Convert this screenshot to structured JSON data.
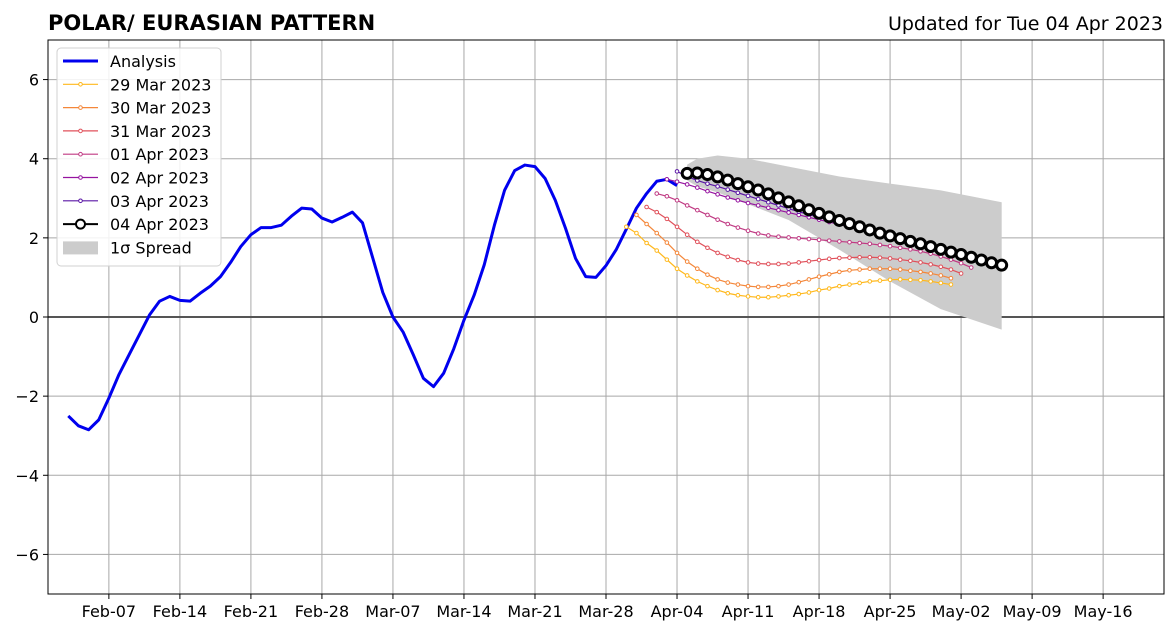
{
  "chart_data": {
    "type": "line",
    "title": "POLAR/ EURASIAN  PATTERN",
    "subtitle": "Updated for Tue 04 Apr 2023",
    "xlabel": "",
    "ylabel": "",
    "x_range": [
      "2023-02-01",
      "2023-05-22"
    ],
    "ylim": [
      -7,
      7
    ],
    "grid": true,
    "legend_position": "top-left",
    "x_ticks": [
      {
        "date": "2023-02-07",
        "label": "Feb-07"
      },
      {
        "date": "2023-02-14",
        "label": "Feb-14"
      },
      {
        "date": "2023-02-21",
        "label": "Feb-21"
      },
      {
        "date": "2023-02-28",
        "label": "Feb-28"
      },
      {
        "date": "2023-03-07",
        "label": "Mar-07"
      },
      {
        "date": "2023-03-14",
        "label": "Mar-14"
      },
      {
        "date": "2023-03-21",
        "label": "Mar-21"
      },
      {
        "date": "2023-03-28",
        "label": "Mar-28"
      },
      {
        "date": "2023-04-04",
        "label": "Apr-04"
      },
      {
        "date": "2023-04-11",
        "label": "Apr-11"
      },
      {
        "date": "2023-04-18",
        "label": "Apr-18"
      },
      {
        "date": "2023-04-25",
        "label": "Apr-25"
      },
      {
        "date": "2023-05-02",
        "label": "May-02"
      },
      {
        "date": "2023-05-09",
        "label": "May-09"
      },
      {
        "date": "2023-05-16",
        "label": "May-16"
      }
    ],
    "y_ticks": [
      {
        "value": 6,
        "label": "6"
      },
      {
        "value": 4,
        "label": "4"
      },
      {
        "value": 2,
        "label": "2"
      },
      {
        "value": 0,
        "label": "0"
      },
      {
        "value": -2,
        "label": "−2"
      },
      {
        "value": -4,
        "label": "−4"
      },
      {
        "value": -6,
        "label": "−6"
      }
    ],
    "analysis": {
      "name": "Analysis",
      "color": "#0000ee",
      "start_date": "2023-02-03",
      "values": [
        -2.5,
        -2.75,
        -2.85,
        -2.6,
        -2.05,
        -1.45,
        -0.95,
        -0.45,
        0.05,
        0.4,
        0.52,
        0.42,
        0.4,
        0.6,
        0.78,
        1.02,
        1.38,
        1.78,
        2.08,
        2.26,
        2.26,
        2.32,
        2.55,
        2.75,
        2.73,
        2.5,
        2.4,
        2.52,
        2.65,
        2.38,
        1.5,
        0.62,
        0.0,
        -0.38,
        -0.95,
        -1.55,
        -1.76,
        -1.42,
        -0.8,
        -0.08,
        0.55,
        1.32,
        2.32,
        3.2,
        3.7,
        3.84,
        3.8,
        3.5,
        2.95,
        2.25,
        1.48,
        1.02,
        1.0,
        1.3,
        1.7,
        2.22,
        2.75,
        3.12,
        3.43,
        3.48,
        3.32
      ]
    },
    "series": [
      {
        "name": "29 Mar 2023",
        "color": "#ffb81c",
        "start_date": "2023-03-30",
        "values": [
          2.28,
          2.12,
          1.87,
          1.68,
          1.45,
          1.22,
          1.05,
          0.9,
          0.78,
          0.68,
          0.6,
          0.55,
          0.52,
          0.5,
          0.5,
          0.52,
          0.55,
          0.58,
          0.62,
          0.68,
          0.72,
          0.78,
          0.82,
          0.86,
          0.9,
          0.92,
          0.94,
          0.95,
          0.94,
          0.93,
          0.9,
          0.86,
          0.82
        ]
      },
      {
        "name": "30 Mar 2023",
        "color": "#f4873a",
        "start_date": "2023-03-31",
        "values": [
          2.58,
          2.35,
          2.12,
          1.88,
          1.62,
          1.4,
          1.22,
          1.07,
          0.95,
          0.87,
          0.82,
          0.78,
          0.76,
          0.76,
          0.78,
          0.82,
          0.88,
          0.95,
          1.02,
          1.08,
          1.14,
          1.18,
          1.2,
          1.22,
          1.22,
          1.22,
          1.2,
          1.17,
          1.14,
          1.1,
          1.05,
          0.98
        ]
      },
      {
        "name": "31 Mar 2023",
        "color": "#e0515b",
        "start_date": "2023-04-01",
        "values": [
          2.78,
          2.65,
          2.48,
          2.28,
          2.08,
          1.9,
          1.75,
          1.62,
          1.52,
          1.44,
          1.38,
          1.35,
          1.34,
          1.34,
          1.35,
          1.38,
          1.41,
          1.44,
          1.47,
          1.49,
          1.5,
          1.51,
          1.51,
          1.5,
          1.48,
          1.45,
          1.42,
          1.38,
          1.33,
          1.27,
          1.2,
          1.1
        ]
      },
      {
        "name": "01 Apr 2023",
        "color": "#c03a83",
        "start_date": "2023-04-02",
        "values": [
          3.12,
          3.05,
          2.95,
          2.82,
          2.7,
          2.58,
          2.46,
          2.35,
          2.26,
          2.18,
          2.11,
          2.06,
          2.03,
          2.01,
          1.99,
          1.97,
          1.95,
          1.93,
          1.91,
          1.89,
          1.87,
          1.85,
          1.82,
          1.79,
          1.75,
          1.71,
          1.66,
          1.6,
          1.53,
          1.45,
          1.36,
          1.25
        ]
      },
      {
        "name": "02 Apr 2023",
        "color": "#9614a0",
        "start_date": "2023-04-03",
        "values": [
          3.48,
          3.42,
          3.35,
          3.27,
          3.18,
          3.1,
          3.02,
          2.95,
          2.88,
          2.82,
          2.76,
          2.7,
          2.64,
          2.58,
          2.52,
          2.46,
          2.4,
          2.34,
          2.28,
          2.22,
          2.16,
          2.1,
          2.04,
          1.98,
          1.92,
          1.85,
          1.78,
          1.71,
          1.63,
          1.55,
          1.46,
          1.37
        ]
      },
      {
        "name": "03 Apr 2023",
        "color": "#5a16a5",
        "start_date": "2023-04-04",
        "values": [
          3.68,
          3.55,
          3.45,
          3.37,
          3.3,
          3.22,
          3.14,
          3.06,
          2.98,
          2.9,
          2.82,
          2.74,
          2.66,
          2.59,
          2.52,
          2.45,
          2.38,
          2.31,
          2.24,
          2.17,
          2.1,
          2.03,
          1.96,
          1.89,
          1.82,
          1.75,
          1.68,
          1.6,
          1.52,
          1.44,
          1.36,
          1.3
        ]
      },
      {
        "name": "04 Apr 2023",
        "color": "#000000",
        "start_date": "2023-04-05",
        "values": [
          3.63,
          3.64,
          3.6,
          3.54,
          3.46,
          3.37,
          3.29,
          3.21,
          3.11,
          3.01,
          2.91,
          2.81,
          2.71,
          2.62,
          2.53,
          2.44,
          2.36,
          2.28,
          2.2,
          2.12,
          2.05,
          1.98,
          1.91,
          1.85,
          1.78,
          1.71,
          1.64,
          1.58,
          1.51,
          1.44,
          1.37,
          1.31
        ]
      }
    ],
    "spread": {
      "name": "1σ Spread",
      "color": "#cccccc",
      "dates": [
        "2023-04-05",
        "2023-04-06",
        "2023-04-08",
        "2023-04-11",
        "2023-04-15",
        "2023-04-20",
        "2023-04-25",
        "2023-04-30",
        "2023-05-06"
      ],
      "upper": [
        3.85,
        4.0,
        4.08,
        4.0,
        3.8,
        3.55,
        3.37,
        3.2,
        2.9
      ],
      "lower": [
        3.45,
        3.3,
        3.15,
        2.85,
        2.45,
        1.7,
        0.9,
        0.2,
        -0.32
      ]
    }
  }
}
